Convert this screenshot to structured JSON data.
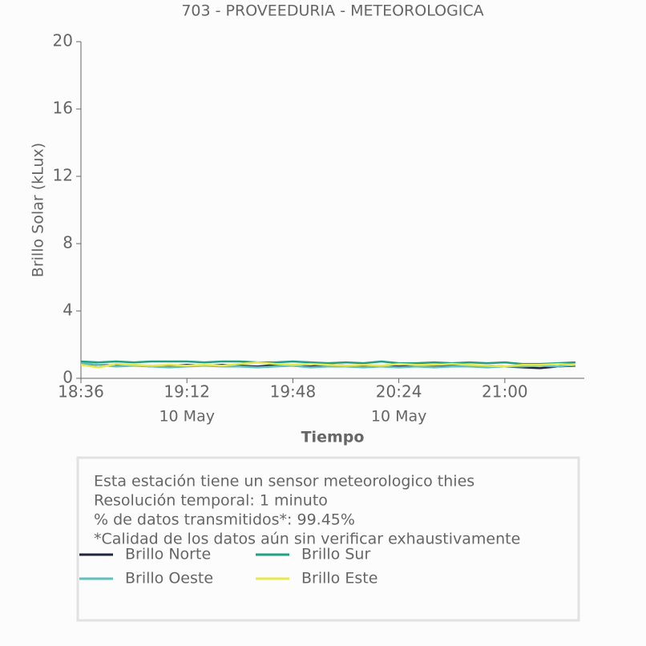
{
  "chart_data": {
    "type": "line",
    "title": "703 - PROVEEDURIA - METEOROLOGICA",
    "ylabel": "Brillo Solar (kLux)",
    "xlabel": "Tiempo",
    "x": [
      "18:36",
      "18:42",
      "18:48",
      "18:54",
      "19:00",
      "19:06",
      "19:12",
      "19:18",
      "19:24",
      "19:30",
      "19:36",
      "19:42",
      "19:48",
      "19:54",
      "20:00",
      "20:06",
      "20:12",
      "20:18",
      "20:24",
      "20:30",
      "20:36",
      "20:42",
      "20:48",
      "20:54",
      "21:00",
      "21:06",
      "21:12",
      "21:18",
      "21:24"
    ],
    "xlim": [
      "18:36",
      "21:27"
    ],
    "xticks": [
      "18:36",
      "19:12",
      "19:48",
      "20:24",
      "21:00"
    ],
    "xtick_sublabels": [
      {
        "value": "19:12",
        "label": "10 May"
      },
      {
        "value": "20:24",
        "label": "10 May"
      }
    ],
    "ylim": [
      0,
      20
    ],
    "yticks": [
      0,
      4,
      8,
      12,
      16,
      20
    ],
    "series": [
      {
        "name": "Brillo Norte",
        "color": "#1f2640",
        "values": [
          0.85,
          0.8,
          0.75,
          0.8,
          0.7,
          0.75,
          0.8,
          0.75,
          0.8,
          0.75,
          0.7,
          0.8,
          0.75,
          0.7,
          0.8,
          0.75,
          0.7,
          0.75,
          0.7,
          0.75,
          0.7,
          0.75,
          0.7,
          0.75,
          0.7,
          0.65,
          0.6,
          0.7,
          0.75
        ]
      },
      {
        "name": "Brillo Sur",
        "color": "#23a083",
        "values": [
          1.0,
          0.95,
          1.0,
          0.95,
          1.0,
          1.0,
          1.0,
          0.95,
          1.0,
          1.0,
          0.95,
          0.95,
          1.0,
          0.95,
          0.9,
          0.95,
          0.9,
          1.0,
          0.9,
          0.9,
          0.95,
          0.9,
          0.95,
          0.9,
          0.95,
          0.85,
          0.85,
          0.9,
          0.95
        ]
      },
      {
        "name": "Brillo Oeste",
        "color": "#5fbfbd",
        "values": [
          0.9,
          0.8,
          0.7,
          0.75,
          0.7,
          0.65,
          0.7,
          0.75,
          0.7,
          0.7,
          0.65,
          0.7,
          0.75,
          0.65,
          0.7,
          0.7,
          0.65,
          0.7,
          0.65,
          0.7,
          0.65,
          0.7,
          0.7,
          0.65,
          0.7,
          0.7,
          0.75,
          0.7,
          0.8
        ]
      },
      {
        "name": "Brillo Este",
        "color": "#e8e84c",
        "values": [
          0.8,
          0.65,
          0.85,
          0.8,
          0.75,
          0.8,
          0.75,
          0.8,
          0.75,
          0.85,
          0.95,
          0.85,
          0.8,
          0.85,
          0.8,
          0.75,
          0.8,
          0.75,
          0.85,
          0.8,
          0.8,
          0.85,
          0.8,
          0.75,
          0.7,
          0.8,
          0.8,
          0.85,
          0.8
        ]
      }
    ],
    "info_lines": [
      "Esta estación tiene un sensor meteorologico thies",
      "Resolución temporal: 1 minuto",
      "% de datos transmitidos*: 99.45%",
      "*Calidad de los datos aún sin verificar exhaustivamente"
    ]
  }
}
